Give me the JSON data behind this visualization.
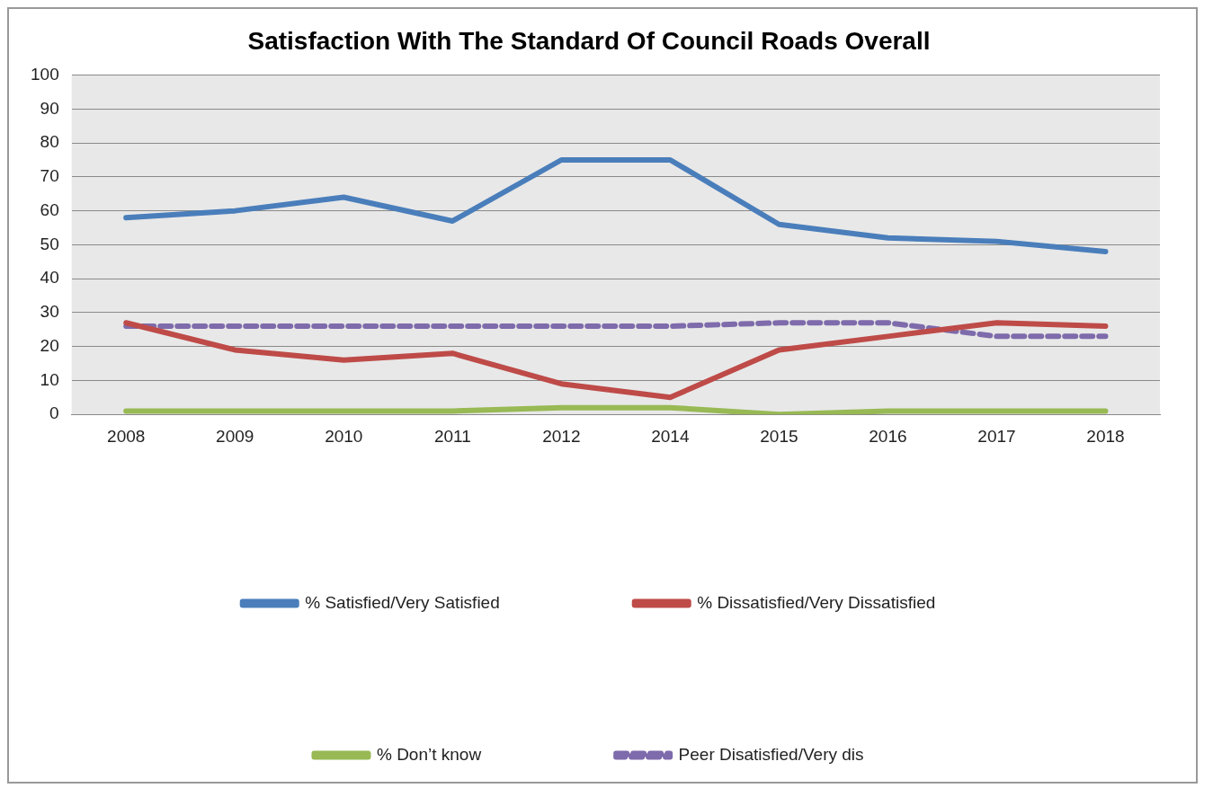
{
  "chart_data": {
    "type": "line",
    "title": "Satisfaction With The Standard Of Council Roads Overall",
    "categories": [
      "2008",
      "2009",
      "2010",
      "2011",
      "2012",
      "2014",
      "2015",
      "2016",
      "2017",
      "2018"
    ],
    "series": [
      {
        "name": "% Satisfied/Very Satisfied",
        "color": "#4a7ebb",
        "values": [
          58,
          60,
          64,
          57,
          75,
          75,
          56,
          52,
          51,
          48
        ]
      },
      {
        "name": "% Dissatisfied/Very Dissatisfied",
        "color": "#be4b48",
        "values": [
          27,
          19,
          16,
          18,
          9,
          5,
          19,
          23,
          27,
          26
        ]
      },
      {
        "name": "% Don’t know",
        "color": "#98b954",
        "values": [
          1,
          1,
          1,
          1,
          2,
          2,
          0,
          1,
          1,
          1
        ]
      },
      {
        "name": "Peer Disatisfied/Very dis",
        "color": "#7e6bab",
        "line_style": "dashed",
        "values": [
          26,
          26,
          26,
          26,
          26,
          26,
          27,
          27,
          23,
          23
        ]
      }
    ],
    "ylim": [
      0,
      100
    ],
    "yticks": [
      0,
      10,
      20,
      30,
      40,
      50,
      60,
      70,
      80,
      90,
      100
    ],
    "grid": "y",
    "legend": "bottom",
    "marker": "none",
    "line_style": "solid"
  }
}
